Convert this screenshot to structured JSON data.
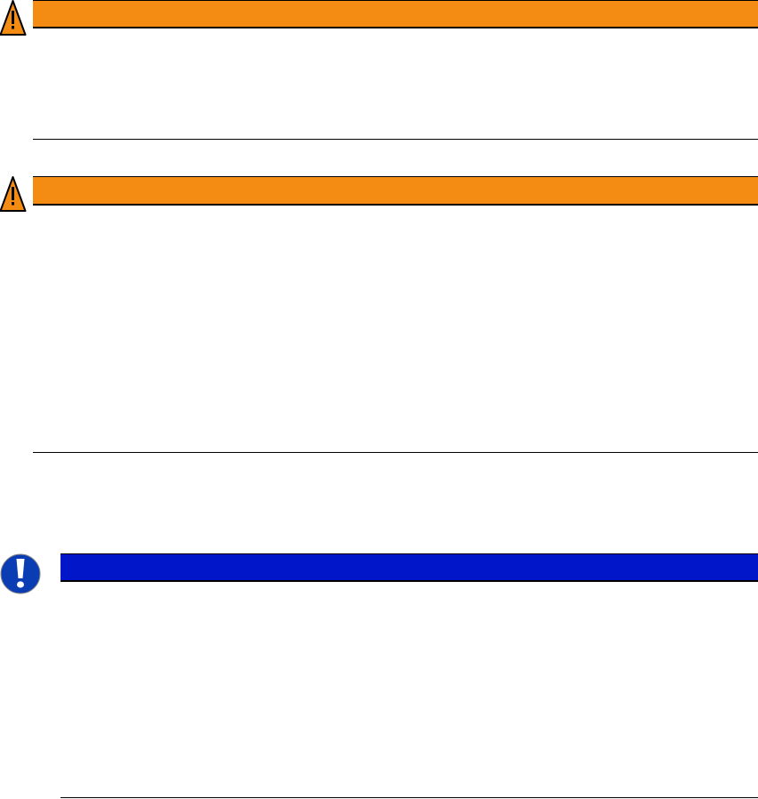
{
  "colors": {
    "warning": "#F48C14",
    "notice": "#0016C8",
    "notice_icon": "#0A3CB4"
  },
  "notices": [
    {
      "type": "warning",
      "icon": "warning-triangle-icon"
    },
    {
      "type": "warning",
      "icon": "warning-triangle-icon"
    },
    {
      "type": "notice",
      "icon": "exclamation-circle-icon"
    }
  ]
}
